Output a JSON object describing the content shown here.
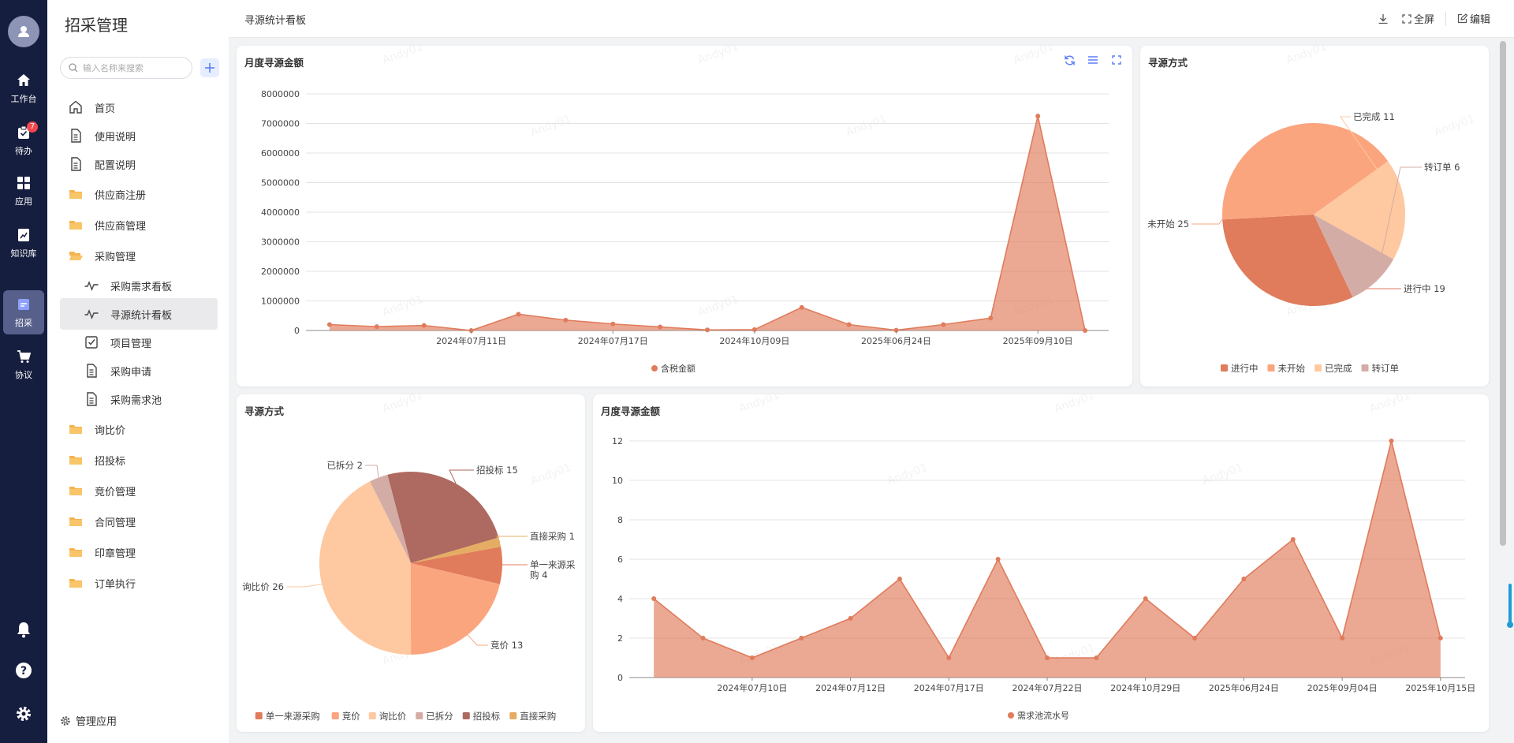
{
  "nav": {
    "items": [
      {
        "label": "工作台",
        "icon": "home-icon"
      },
      {
        "label": "待办",
        "icon": "todo-icon",
        "badge": "7"
      },
      {
        "label": "应用",
        "icon": "apps-icon"
      },
      {
        "label": "知识库",
        "icon": "knowledge-icon"
      },
      {
        "label": "招采",
        "icon": "procurement-icon",
        "active": true
      },
      {
        "label": "协议",
        "icon": "cart-icon"
      }
    ],
    "bottom_icons": [
      "bell-icon",
      "help-icon",
      "settings-icon"
    ]
  },
  "sidebar": {
    "title": "招采管理",
    "search_placeholder": "输入名称来搜索",
    "items": [
      {
        "label": "首页",
        "icon": "home-outline-icon"
      },
      {
        "label": "使用说明",
        "icon": "document-icon"
      },
      {
        "label": "配置说明",
        "icon": "document-icon"
      },
      {
        "label": "供应商注册",
        "icon": "folder-icon"
      },
      {
        "label": "供应商管理",
        "icon": "folder-icon"
      },
      {
        "label": "采购管理",
        "icon": "folder-open-icon"
      },
      {
        "label": "采购需求看板",
        "icon": "pulse-icon"
      },
      {
        "label": "寻源统计看板",
        "icon": "pulse-icon"
      },
      {
        "label": "项目管理",
        "icon": "checkbox-icon"
      },
      {
        "label": "采购申请",
        "icon": "document-icon"
      },
      {
        "label": "采购需求池",
        "icon": "document-icon"
      },
      {
        "label": "询比价",
        "icon": "folder-icon"
      },
      {
        "label": "招投标",
        "icon": "folder-icon"
      },
      {
        "label": "竞价管理",
        "icon": "folder-icon"
      },
      {
        "label": "合同管理",
        "icon": "folder-icon"
      },
      {
        "label": "印章管理",
        "icon": "folder-icon"
      },
      {
        "label": "订单执行",
        "icon": "folder-icon"
      }
    ],
    "footer": "管理应用"
  },
  "header": {
    "title": "寻源统计看板",
    "fullscreen": "全屏",
    "edit": "编辑"
  },
  "colors": {
    "orange": "#e07b5b",
    "peach": "#fba57f",
    "light_peach": "#fec8a0",
    "mauve": "#d4aca6",
    "brown": "#ae6960",
    "gold": "#e5ad63",
    "accent": "#5b7ef6"
  },
  "watermark": "Andy01",
  "chart_data": [
    {
      "type": "area",
      "title": "月度寻源金额",
      "x": [
        "",
        "",
        "",
        "2024年07月11日",
        "",
        "",
        "2024年07月17日",
        "",
        "",
        "2024年10月09日",
        "",
        "",
        "2025年06月24日",
        "",
        "",
        "2025年09月10日",
        ""
      ],
      "x_ticks": [
        "2024年07月11日",
        "2024年07月17日",
        "2024年10月09日",
        "2025年06月24日",
        "2025年09月10日"
      ],
      "series": [
        {
          "name": "含税金额",
          "values": [
            200000,
            130000,
            170000,
            0,
            550000,
            350000,
            220000,
            120000,
            20000,
            30000,
            780000,
            200000,
            10000,
            200000,
            420000,
            7250000,
            0
          ]
        }
      ],
      "ylim": [
        0,
        8000000
      ],
      "y_ticks": [
        "8000000",
        "7000000",
        "6000000",
        "5000000",
        "4000000",
        "3000000",
        "2000000",
        "1000000",
        "0"
      ],
      "legend": "bottom"
    },
    {
      "type": "pie",
      "title": "寻源方式",
      "labels": [
        "进行中",
        "未开始",
        "已完成",
        "转订单"
      ],
      "values": [
        19,
        25,
        11,
        6
      ],
      "label_texts": [
        "进行中 19",
        "未开始 25",
        "已完成 11",
        "转订单 6"
      ],
      "legend": "bottom"
    },
    {
      "type": "pie",
      "title": "寻源方式",
      "labels": [
        "单一来源采购",
        "竞价",
        "询比价",
        "已拆分",
        "招投标",
        "直接采购"
      ],
      "values": [
        4,
        13,
        26,
        2,
        15,
        1
      ],
      "label_texts": [
        "单一来源采购 4",
        "竞价 13",
        "询比价 26",
        "已拆分 2",
        "招投标 15",
        "直接采购 1"
      ],
      "legend": "bottom"
    },
    {
      "type": "area",
      "title": "月度寻源金额",
      "x_ticks": [
        "2024年07月10日",
        "2024年07月12日",
        "2024年07月17日",
        "2024年07月22日",
        "2024年10月29日",
        "2025年06月24日",
        "2025年09月04日",
        "2025年10月15日"
      ],
      "series": [
        {
          "name": "需求池流水号",
          "values": [
            4,
            2,
            1,
            2,
            3,
            5,
            1,
            6,
            1,
            1,
            4,
            2,
            5,
            7,
            2,
            12,
            2
          ]
        }
      ],
      "ylim": [
        0,
        12
      ],
      "y_ticks": [
        "12",
        "10",
        "8",
        "6",
        "4",
        "2",
        "0"
      ],
      "legend": "bottom"
    }
  ]
}
